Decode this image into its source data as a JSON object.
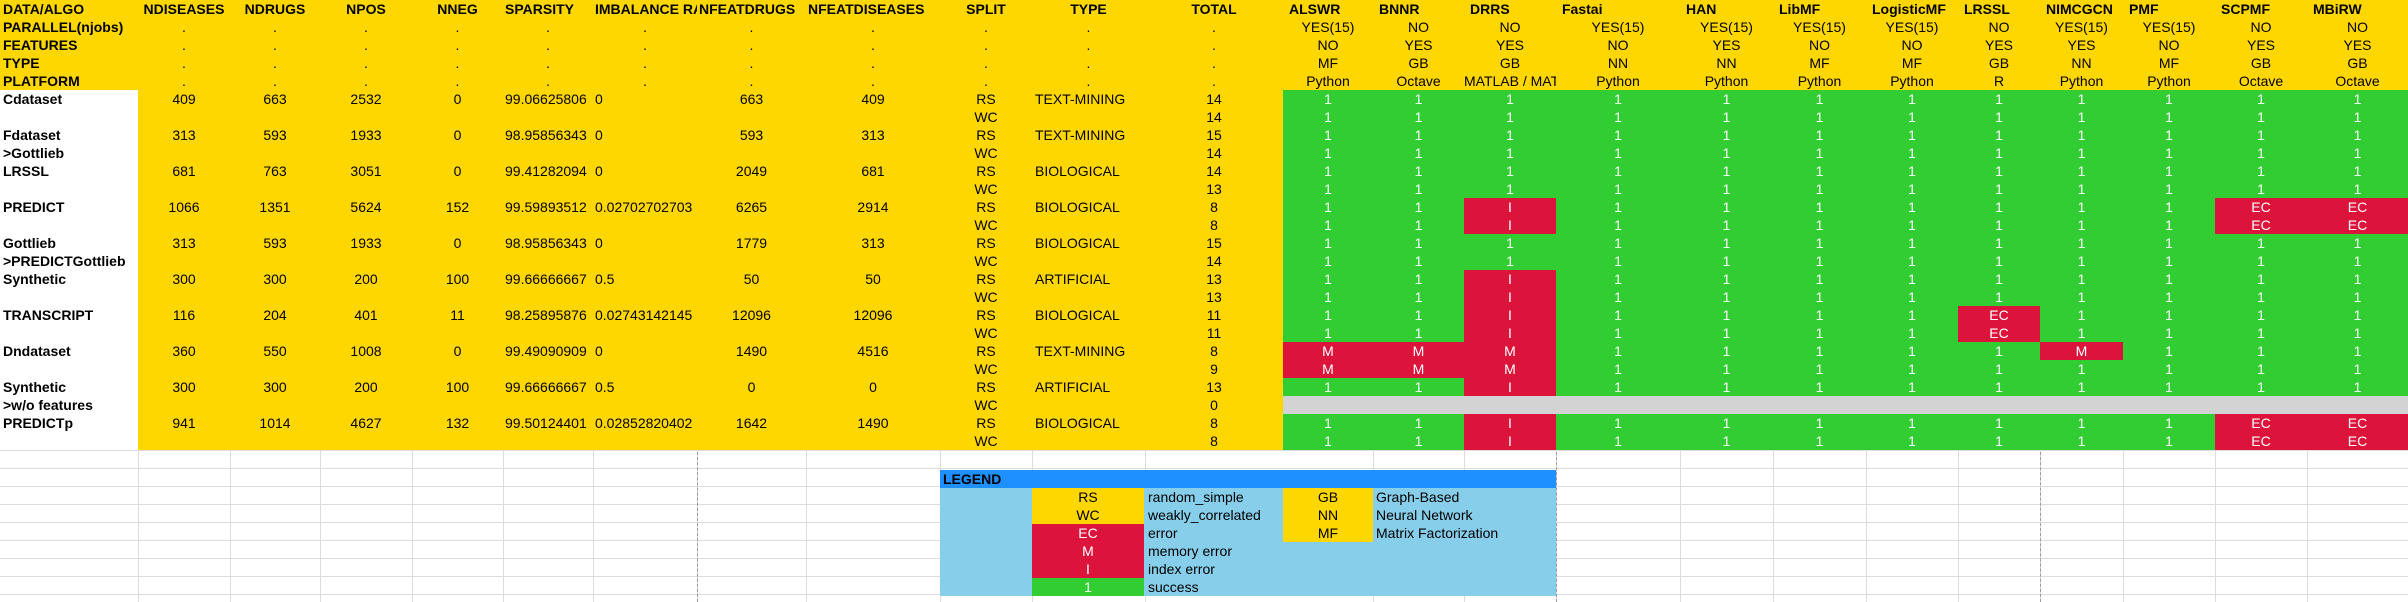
{
  "colors": {
    "yellow": "#ffd700",
    "green": "#32cd32",
    "red": "#dc143c",
    "gray": "#d3d3d3",
    "lightblue": "#87ceeb",
    "blue": "#1e90ff",
    "white": "#ffffff"
  },
  "header_columns": [
    "DATA/ALGO",
    "NDISEASES",
    "NDRUGS",
    "NPOS",
    "NNEG",
    "SPARSITY",
    "IMBALANCE RATIO",
    "NFEATDRUGS",
    "NFEATDISEASES",
    "SPLIT",
    "TYPE",
    "TOTAL"
  ],
  "meta_rows": [
    {
      "label": "PARALLEL(njobs)",
      "fill": ".",
      "algos": [
        "YES(15)",
        "NO",
        "NO",
        "YES(15)",
        "YES(15)",
        "YES(15)",
        "YES(15)",
        "NO",
        "YES(15)",
        "YES(15)",
        "NO",
        "NO"
      ]
    },
    {
      "label": "FEATURES",
      "fill": ".",
      "algos": [
        "NO",
        "YES",
        "YES",
        "NO",
        "YES",
        "NO",
        "NO",
        "YES",
        "YES",
        "NO",
        "YES",
        "YES"
      ]
    },
    {
      "label": "TYPE",
      "fill": ".",
      "algos": [
        "MF",
        "GB",
        "GB",
        "NN",
        "NN",
        "MF",
        "MF",
        "GB",
        "NN",
        "MF",
        "GB",
        "GB"
      ]
    },
    {
      "label": "PLATFORM",
      "fill": ".",
      "algos": [
        "Python",
        "Octave",
        "MATLAB / MATLAB",
        "Python",
        "Python",
        "Python",
        "Python",
        "R",
        "Python",
        "Python",
        "Octave",
        "Octave"
      ]
    }
  ],
  "algorithms": [
    "ALSWR",
    "BNNR",
    "DRRS",
    "Fastai",
    "HAN",
    "LibMF",
    "LogisticMF",
    "LRSSL",
    "NIMCGCN",
    "PMF",
    "SCPMF",
    "MBiRW"
  ],
  "datasets": [
    {
      "name": "Cdataset",
      "ndis": "409",
      "ndrugs": "663",
      "npos": "2532",
      "nneg": "0",
      "sparsity": "99.06625806",
      "imbalance": "0",
      "nfeatdrugs": "663",
      "nfeatdis": "409",
      "rows": [
        {
          "split": "RS",
          "type": "TEXT-MINING",
          "total": "14",
          "res": [
            "1",
            "1",
            "1",
            "1",
            "1",
            "1",
            "1",
            "1",
            "1",
            "1",
            "1",
            "1"
          ]
        },
        {
          "split": "WC",
          "type": "",
          "total": "14",
          "res": [
            "1",
            "1",
            "1",
            "1",
            "1",
            "1",
            "1",
            "1",
            "1",
            "1",
            "1",
            "1"
          ]
        }
      ]
    },
    {
      "name": "Fdataset",
      "name2": ">Gottlieb",
      "ndis": "313",
      "ndrugs": "593",
      "npos": "1933",
      "nneg": "0",
      "sparsity": "98.95856343",
      "imbalance": "0",
      "nfeatdrugs": "593",
      "nfeatdis": "313",
      "rows": [
        {
          "split": "RS",
          "type": "TEXT-MINING",
          "total": "15",
          "res": [
            "1",
            "1",
            "1",
            "1",
            "1",
            "1",
            "1",
            "1",
            "1",
            "1",
            "1",
            "1"
          ]
        },
        {
          "split": "WC",
          "type": "",
          "total": "14",
          "res": [
            "1",
            "1",
            "1",
            "1",
            "1",
            "1",
            "1",
            "1",
            "1",
            "1",
            "1",
            "1"
          ]
        }
      ]
    },
    {
      "name": "LRSSL",
      "ndis": "681",
      "ndrugs": "763",
      "npos": "3051",
      "nneg": "0",
      "sparsity": "99.41282094",
      "imbalance": "0",
      "nfeatdrugs": "2049",
      "nfeatdis": "681",
      "rows": [
        {
          "split": "RS",
          "type": "BIOLOGICAL",
          "total": "14",
          "res": [
            "1",
            "1",
            "1",
            "1",
            "1",
            "1",
            "1",
            "1",
            "1",
            "1",
            "1",
            "1"
          ]
        },
        {
          "split": "WC",
          "type": "",
          "total": "13",
          "res": [
            "1",
            "1",
            "1",
            "1",
            "1",
            "1",
            "1",
            "1",
            "1",
            "1",
            "1",
            "1"
          ]
        }
      ]
    },
    {
      "name": "PREDICT",
      "ndis": "1066",
      "ndrugs": "1351",
      "npos": "5624",
      "nneg": "152",
      "sparsity": "99.59893512",
      "imbalance": "0.02702702703",
      "nfeatdrugs": "6265",
      "nfeatdis": "2914",
      "rows": [
        {
          "split": "RS",
          "type": "BIOLOGICAL",
          "total": "8",
          "res": [
            "1",
            "1",
            "I",
            "1",
            "1",
            "1",
            "1",
            "1",
            "1",
            "1",
            "EC",
            "EC"
          ]
        },
        {
          "split": "WC",
          "type": "",
          "total": "8",
          "res": [
            "1",
            "1",
            "I",
            "1",
            "1",
            "1",
            "1",
            "1",
            "1",
            "1",
            "EC",
            "EC"
          ]
        }
      ]
    },
    {
      "name": "Gottlieb",
      "name2": ">PREDICTGottlieb",
      "ndis": "313",
      "ndrugs": "593",
      "npos": "1933",
      "nneg": "0",
      "sparsity": "98.95856343",
      "imbalance": "0",
      "nfeatdrugs": "1779",
      "nfeatdis": "313",
      "rows": [
        {
          "split": "RS",
          "type": "BIOLOGICAL",
          "total": "15",
          "res": [
            "1",
            "1",
            "1",
            "1",
            "1",
            "1",
            "1",
            "1",
            "1",
            "1",
            "1",
            "1"
          ]
        },
        {
          "split": "WC",
          "type": "",
          "total": "14",
          "res": [
            "1",
            "1",
            "1",
            "1",
            "1",
            "1",
            "1",
            "1",
            "1",
            "1",
            "1",
            "1"
          ]
        }
      ]
    },
    {
      "name": "Synthetic",
      "ndis": "300",
      "ndrugs": "300",
      "npos": "200",
      "nneg": "100",
      "sparsity": "99.66666667",
      "imbalance": "0.5",
      "nfeatdrugs": "50",
      "nfeatdis": "50",
      "rows": [
        {
          "split": "RS",
          "type": "ARTIFICIAL",
          "total": "13",
          "res": [
            "1",
            "1",
            "I",
            "1",
            "1",
            "1",
            "1",
            "1",
            "1",
            "1",
            "1",
            "1"
          ]
        },
        {
          "split": "WC",
          "type": "",
          "total": "13",
          "res": [
            "1",
            "1",
            "I",
            "1",
            "1",
            "1",
            "1",
            "1",
            "1",
            "1",
            "1",
            "1"
          ]
        }
      ]
    },
    {
      "name": "TRANSCRIPT",
      "ndis": "116",
      "ndrugs": "204",
      "npos": "401",
      "nneg": "11",
      "sparsity": "98.25895876",
      "imbalance": "0.02743142145",
      "nfeatdrugs": "12096",
      "nfeatdis": "12096",
      "rows": [
        {
          "split": "RS",
          "type": "BIOLOGICAL",
          "total": "11",
          "res": [
            "1",
            "1",
            "I",
            "1",
            "1",
            "1",
            "1",
            "EC",
            "1",
            "1",
            "1",
            "1"
          ]
        },
        {
          "split": "WC",
          "type": "",
          "total": "11",
          "res": [
            "1",
            "1",
            "I",
            "1",
            "1",
            "1",
            "1",
            "EC",
            "1",
            "1",
            "1",
            "1"
          ]
        }
      ]
    },
    {
      "name": "Dndataset",
      "ndis": "360",
      "ndrugs": "550",
      "npos": "1008",
      "nneg": "0",
      "sparsity": "99.49090909",
      "imbalance": "0",
      "nfeatdrugs": "1490",
      "nfeatdis": "4516",
      "rows": [
        {
          "split": "RS",
          "type": "TEXT-MINING",
          "total": "8",
          "res": [
            "M",
            "M",
            "M",
            "1",
            "1",
            "1",
            "1",
            "1",
            "M",
            "1",
            "1",
            "1"
          ]
        },
        {
          "split": "WC",
          "type": "",
          "total": "9",
          "res": [
            "M",
            "M",
            "M",
            "1",
            "1",
            "1",
            "1",
            "1",
            "1",
            "1",
            "1",
            "1"
          ]
        }
      ]
    },
    {
      "name": "Synthetic",
      "name2": ">w/o features",
      "ndis": "300",
      "ndrugs": "300",
      "npos": "200",
      "nneg": "100",
      "sparsity": "99.66666667",
      "imbalance": "0.5",
      "nfeatdrugs": "0",
      "nfeatdis": "0",
      "rows": [
        {
          "split": "RS",
          "type": "ARTIFICIAL",
          "total": "13",
          "res": [
            "1",
            "1",
            "I",
            "1",
            "1",
            "1",
            "1",
            "1",
            "1",
            "1",
            "1",
            "1"
          ]
        },
        {
          "split": "WC",
          "type": "",
          "total": "0",
          "res": [
            "",
            "",
            "",
            "",
            "",
            "",
            "",
            "",
            "",
            "",
            "",
            ""
          ]
        }
      ]
    },
    {
      "name": "PREDICTp",
      "ndis": "941",
      "ndrugs": "1014",
      "npos": "4627",
      "nneg": "132",
      "sparsity": "99.50124401",
      "imbalance": "0.02852820402",
      "nfeatdrugs": "1642",
      "nfeatdis": "1490",
      "rows": [
        {
          "split": "RS",
          "type": "BIOLOGICAL",
          "total": "8",
          "res": [
            "1",
            "1",
            "I",
            "1",
            "1",
            "1",
            "1",
            "1",
            "1",
            "1",
            "EC",
            "EC"
          ]
        },
        {
          "split": "WC",
          "type": "",
          "total": "8",
          "res": [
            "1",
            "1",
            "I",
            "1",
            "1",
            "1",
            "1",
            "1",
            "1",
            "1",
            "EC",
            "EC"
          ]
        }
      ]
    }
  ],
  "legend": {
    "title": "LEGEND",
    "left": [
      {
        "code": "RS",
        "desc": "random_simple",
        "swatch": "yellow"
      },
      {
        "code": "WC",
        "desc": "weakly_correlated",
        "swatch": "yellow"
      },
      {
        "code": "EC",
        "desc": "error",
        "swatch": "red"
      },
      {
        "code": "M",
        "desc": "memory error",
        "swatch": "red"
      },
      {
        "code": "I",
        "desc": "index error",
        "swatch": "red"
      },
      {
        "code": "1",
        "desc": "success",
        "swatch": "green"
      }
    ],
    "right": [
      {
        "code": "GB",
        "desc": "Graph-Based"
      },
      {
        "code": "NN",
        "desc": "Neural Network"
      },
      {
        "code": "MF",
        "desc": "Matrix Factorization"
      }
    ]
  }
}
